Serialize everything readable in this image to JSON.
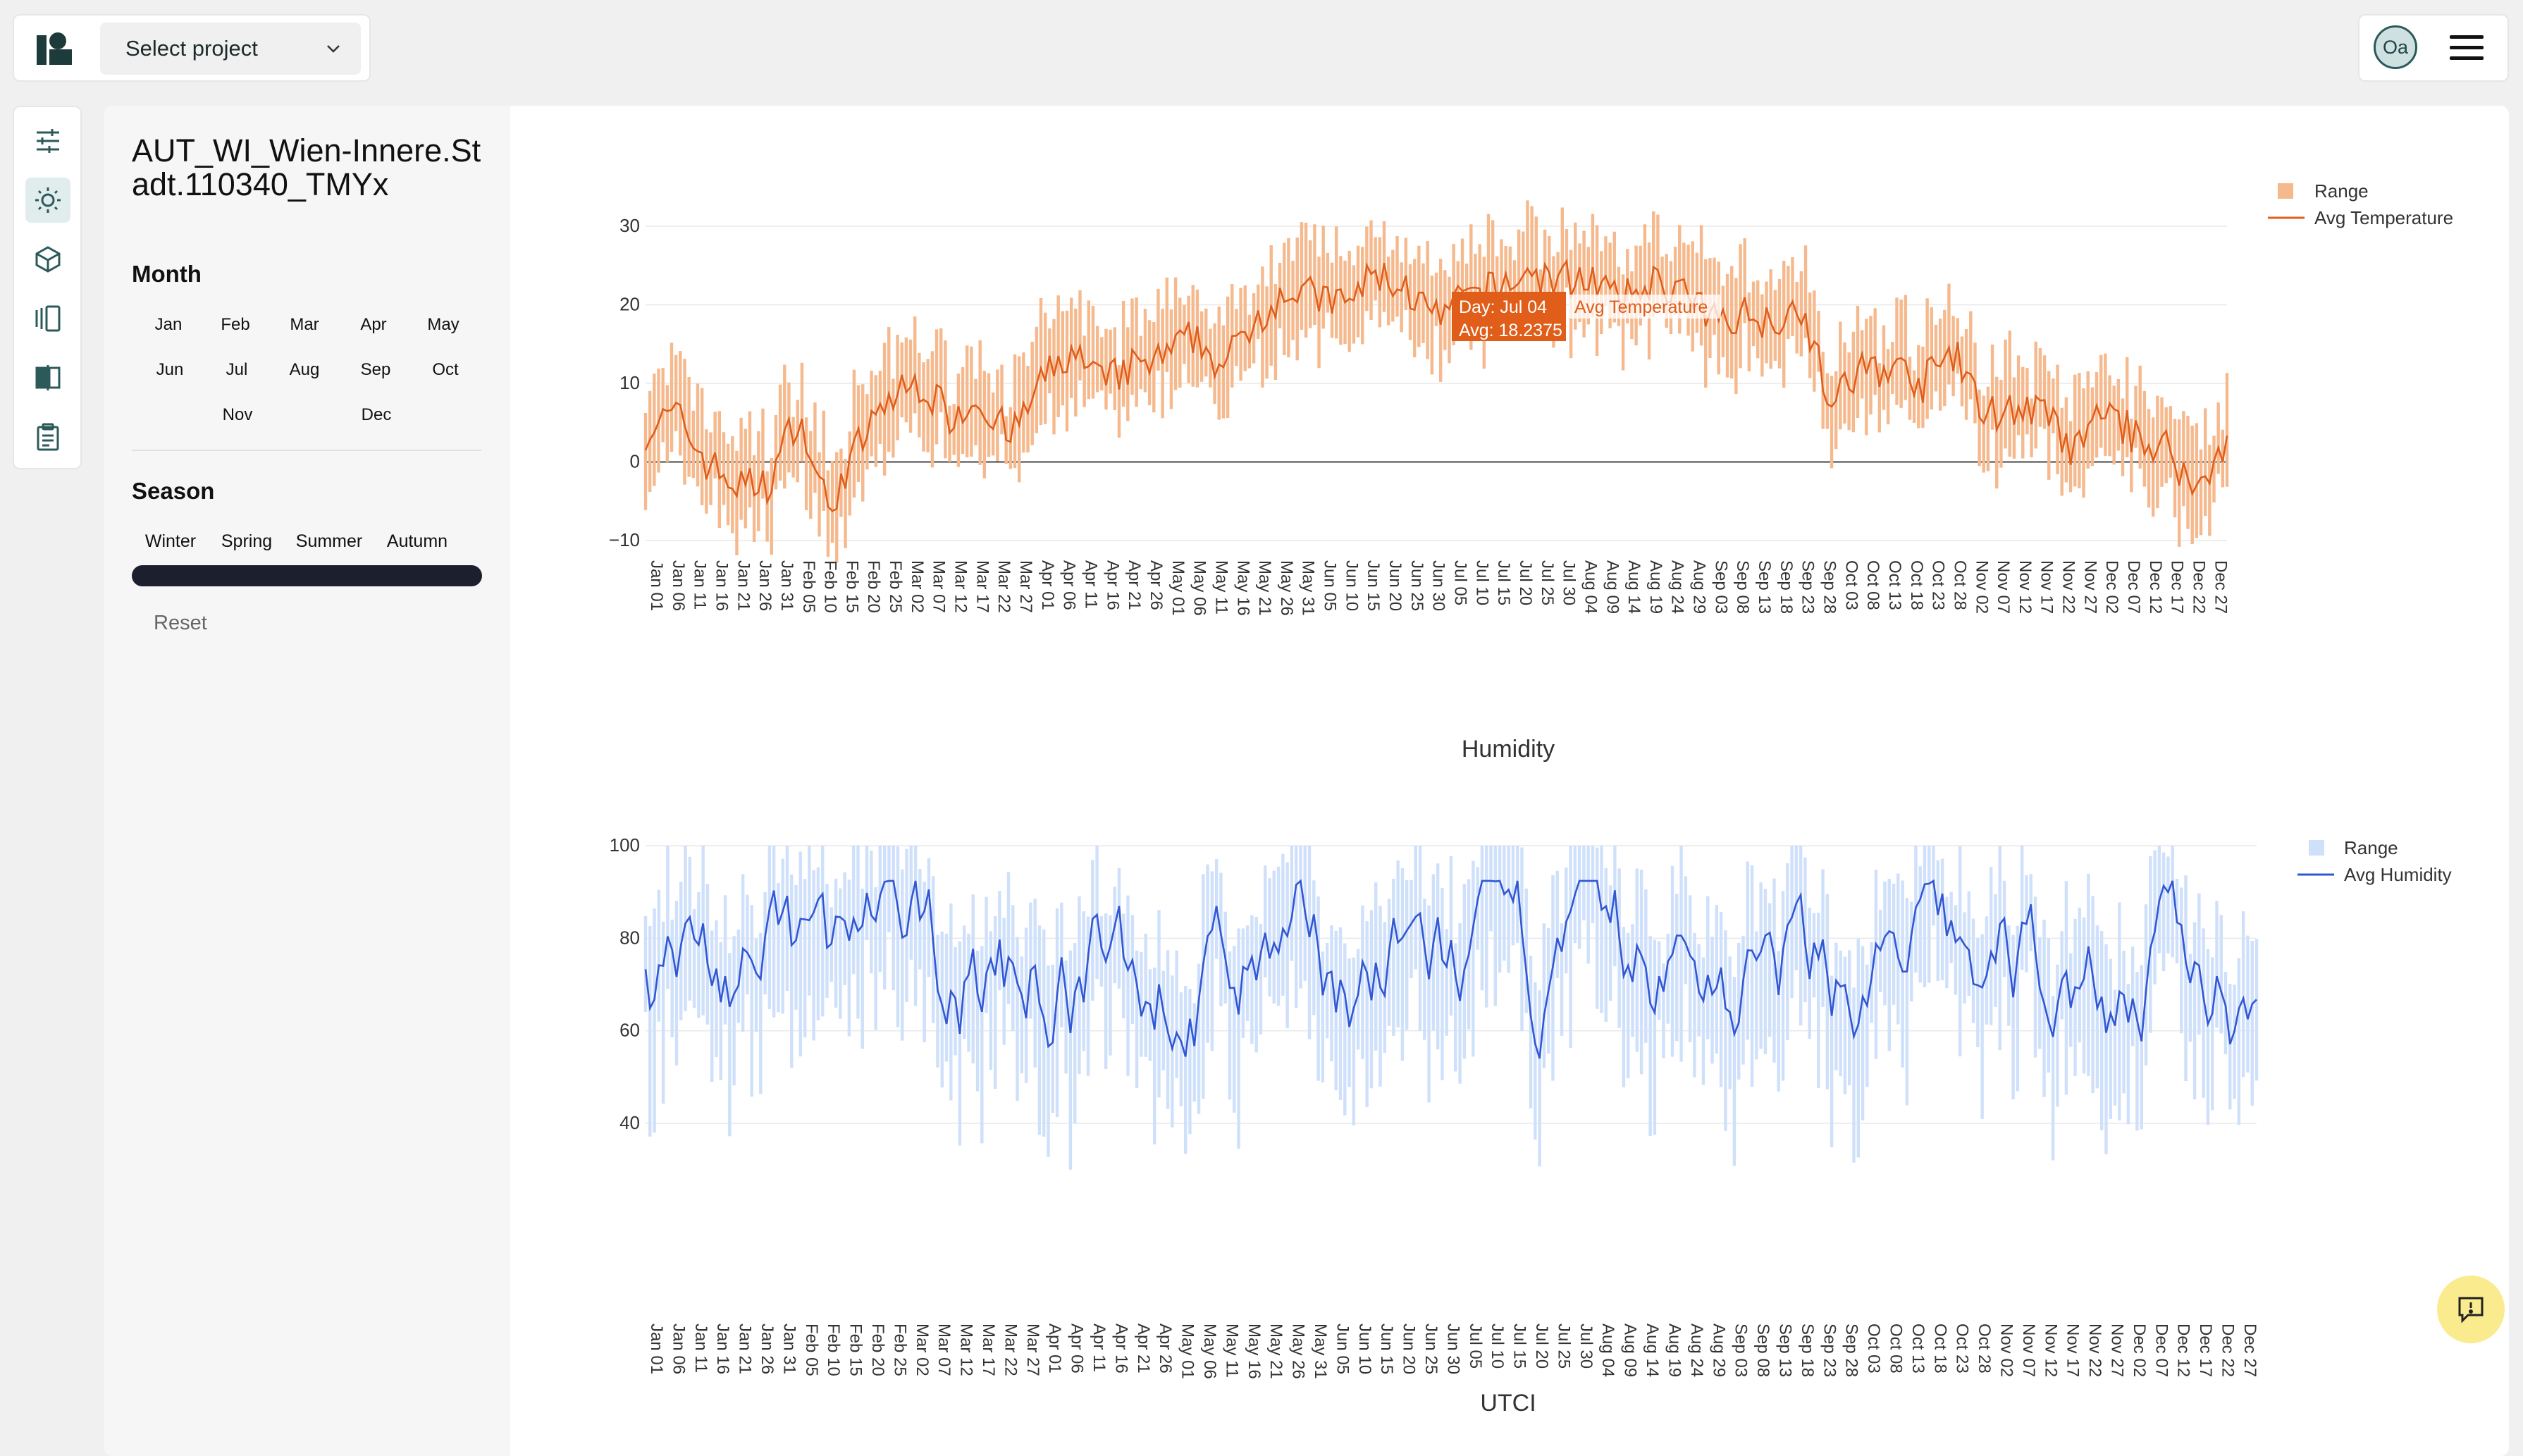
{
  "header": {
    "project_select": {
      "label": "Select project"
    },
    "avatar": {
      "initials": "Oa"
    }
  },
  "sidebar": {
    "location_title": "AUT_WI_Wien-Innere.Stadt.110340_TMYx",
    "month_title": "Month",
    "months": [
      "Jan",
      "Feb",
      "Mar",
      "Apr",
      "May",
      "Jun",
      "Jul",
      "Aug",
      "Sep",
      "Oct",
      "Nov",
      "Dec"
    ],
    "season_title": "Season",
    "seasons": [
      "Winter",
      "Spring",
      "Summer",
      "Autumn"
    ],
    "reset_label": "Reset"
  },
  "colors": {
    "temp_range": "#f5b98d",
    "temp_line": "#e05d1a",
    "hum_range": "#cfe0fb",
    "hum_line": "#3157d4",
    "tooltip_bg": "#e05d1a",
    "season_bar": "#1b1f2e"
  },
  "chart_data": [
    {
      "type": "line",
      "title": "",
      "legend": {
        "position": "top-right",
        "entries": [
          "Range",
          "Avg Temperature"
        ]
      },
      "ylim": [
        -10,
        35
      ],
      "yticks": [
        -10,
        0,
        10,
        20,
        30
      ],
      "x_tick_every_days": 5,
      "x_start": "Jan 01",
      "days": 365,
      "series": [
        {
          "name": "Avg Temperature",
          "description": "daily average, approx weekly anchors",
          "anchors": [
            [
              1,
              4
            ],
            [
              8,
              6
            ],
            [
              15,
              0
            ],
            [
              22,
              -3
            ],
            [
              29,
              -3
            ],
            [
              36,
              6
            ],
            [
              43,
              -6
            ],
            [
              50,
              2
            ],
            [
              57,
              8
            ],
            [
              64,
              10
            ],
            [
              71,
              6
            ],
            [
              78,
              8
            ],
            [
              85,
              3
            ],
            [
              92,
              10
            ],
            [
              99,
              14
            ],
            [
              106,
              10
            ],
            [
              113,
              12
            ],
            [
              120,
              13
            ],
            [
              127,
              16
            ],
            [
              134,
              12
            ],
            [
              141,
              18
            ],
            [
              148,
              22
            ],
            [
              155,
              21
            ],
            [
              162,
              20
            ],
            [
              169,
              24
            ],
            [
              176,
              22
            ],
            [
              183,
              18
            ],
            [
              190,
              21
            ],
            [
              197,
              22
            ],
            [
              204,
              24
            ],
            [
              211,
              23
            ],
            [
              218,
              24
            ],
            [
              225,
              20
            ],
            [
              232,
              23
            ],
            [
              239,
              22
            ],
            [
              246,
              18
            ],
            [
              253,
              19
            ],
            [
              260,
              18
            ],
            [
              267,
              20
            ],
            [
              274,
              7
            ],
            [
              281,
              12
            ],
            [
              288,
              12
            ],
            [
              295,
              10
            ],
            [
              302,
              14
            ],
            [
              309,
              6
            ],
            [
              316,
              7
            ],
            [
              323,
              6
            ],
            [
              330,
              1
            ],
            [
              337,
              7
            ],
            [
              344,
              3
            ],
            [
              351,
              2
            ],
            [
              358,
              -4
            ],
            [
              365,
              3
            ]
          ]
        },
        {
          "name": "Range",
          "description": "daily min-max band"
        }
      ],
      "tooltip": {
        "day": "Day: Jul 04",
        "value": "Avg: 18.2375",
        "series": "Avg Temperature"
      }
    },
    {
      "type": "line",
      "title": "Humidity",
      "legend": {
        "position": "top-right",
        "entries": [
          "Range",
          "Avg Humidity"
        ]
      },
      "ylim": [
        28,
        100
      ],
      "yticks": [
        40,
        60,
        80,
        100
      ],
      "x_tick_every_days": 5,
      "x_start": "Jan 01",
      "days": 365,
      "series": [
        {
          "name": "Avg Humidity",
          "description": "daily average humidity, fluctuating between ~50 and ~95"
        },
        {
          "name": "Range",
          "description": "daily min-max band"
        }
      ]
    },
    {
      "type": "line",
      "title": "UTCI"
    }
  ]
}
